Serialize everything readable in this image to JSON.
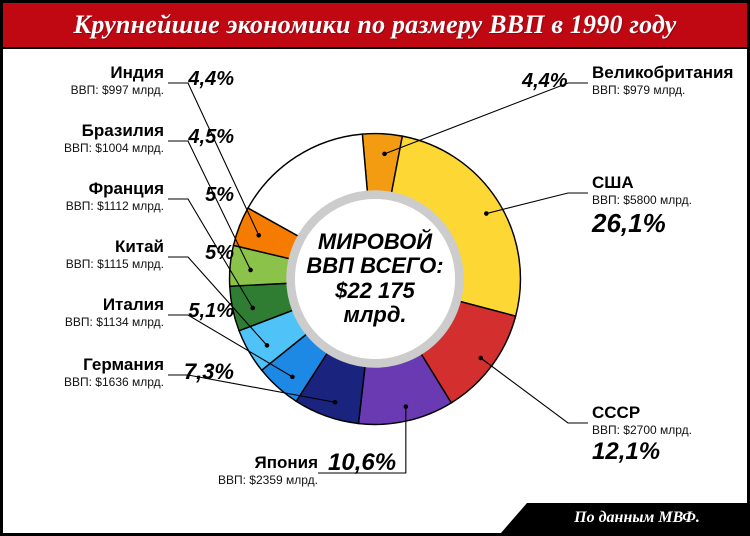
{
  "header": {
    "title": "Крупнейшие экономики по размеру ВВП в 1990 году"
  },
  "footer": {
    "source": "По данным МВФ."
  },
  "center": {
    "line1": "МИРОВОЙ",
    "line2": "ВВП ВСЕГО:",
    "line3": "$22 175",
    "line4": "млрд."
  },
  "chart": {
    "type": "donut",
    "background": "#ffffff",
    "inner_radius": 0.56,
    "outer_radius": 1.0,
    "stroke": "#000000",
    "stroke_width": 1,
    "inner_ring_shadow": "#dcdcdc",
    "start_angle_deg": -5,
    "slices": [
      {
        "id": "uk",
        "country": "Великобритания",
        "gdp_text": "ВВП: $979 млрд.",
        "pct_text": "4,4%",
        "value": 4.4,
        "color": "#f39c12",
        "label_side": "right",
        "pct_font": 20
      },
      {
        "id": "usa",
        "country": "США",
        "gdp_text": "ВВП: $5800 млрд.",
        "pct_text": "26,1%",
        "value": 26.1,
        "color": "#fdd835",
        "label_side": "right",
        "pct_font": 26
      },
      {
        "id": "ussr",
        "country": "СССР",
        "gdp_text": "ВВП: $2700 млрд.",
        "pct_text": "12,1%",
        "value": 12.1,
        "color": "#d32f2f",
        "label_side": "right",
        "pct_font": 24
      },
      {
        "id": "japan",
        "country": "Япония",
        "gdp_text": "ВВП: $2359 млрд.",
        "pct_text": "10,6%",
        "value": 10.6,
        "color": "#6a3ab2",
        "label_side": "left",
        "pct_font": 24
      },
      {
        "id": "germany",
        "country": "Германия",
        "gdp_text": "ВВП: $1636 млрд.",
        "pct_text": "7,3%",
        "value": 7.3,
        "color": "#1a237e",
        "label_side": "left",
        "pct_font": 22
      },
      {
        "id": "italy",
        "country": "Италия",
        "gdp_text": "ВВП: $1134 млрд.",
        "pct_text": "5,1%",
        "value": 5.1,
        "color": "#1e88e5",
        "label_side": "left",
        "pct_font": 20
      },
      {
        "id": "china",
        "country": "Китай",
        "gdp_text": "ВВП: $1115 млрд.",
        "pct_text": "5%",
        "value": 5.0,
        "color": "#4fc3f7",
        "label_side": "left",
        "pct_font": 20
      },
      {
        "id": "france",
        "country": "Франция",
        "gdp_text": "ВВП: $1112 млрд.",
        "pct_text": "5%",
        "value": 5.0,
        "color": "#2e7d32",
        "label_side": "left",
        "pct_font": 20
      },
      {
        "id": "brazil",
        "country": "Бразилия",
        "gdp_text": "ВВП: $1004 млрд.",
        "pct_text": "4,5%",
        "value": 4.5,
        "color": "#8bc34a",
        "label_side": "left",
        "pct_font": 20
      },
      {
        "id": "india",
        "country": "Индия",
        "gdp_text": "ВВП: $997 млрд.",
        "pct_text": "4,4%",
        "value": 4.4,
        "color": "#f57c00",
        "label_side": "left",
        "pct_font": 20
      }
    ],
    "remainder_color": "#ffffff"
  },
  "layout": {
    "header_bg": "#c00813",
    "header_text": "#ffffff",
    "frame_border": "#000000"
  }
}
